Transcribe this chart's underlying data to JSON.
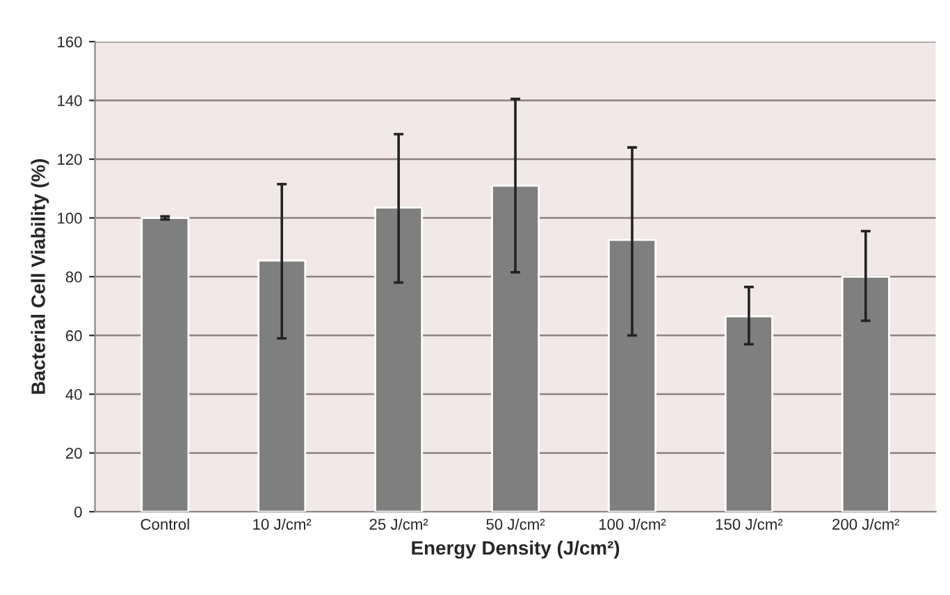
{
  "chart_data": {
    "type": "bar",
    "xlabel": "Energy Density (J/cm²)",
    "ylabel": "Bacterial Cell Viability (%)",
    "categories": [
      "Control",
      "10 J/cm²",
      "25 J/cm²",
      "50 J/cm²",
      "100 J/cm²",
      "150 J/cm²",
      "200 J/cm²"
    ],
    "values": [
      100,
      85.5,
      103.5,
      111,
      92.5,
      66.5,
      80
    ],
    "errors": [
      0.5,
      [
        59,
        111.5
      ],
      [
        78,
        128.5
      ],
      [
        81.5,
        140.5
      ],
      [
        60,
        124
      ],
      [
        57,
        76.5
      ],
      [
        65,
        95.5
      ]
    ],
    "color": "#7f7f7f",
    "ylim": [
      0,
      160
    ],
    "yticks": [
      0,
      20,
      40,
      60,
      80,
      100,
      120,
      140,
      160
    ],
    "grid": "y",
    "legend": false
  }
}
